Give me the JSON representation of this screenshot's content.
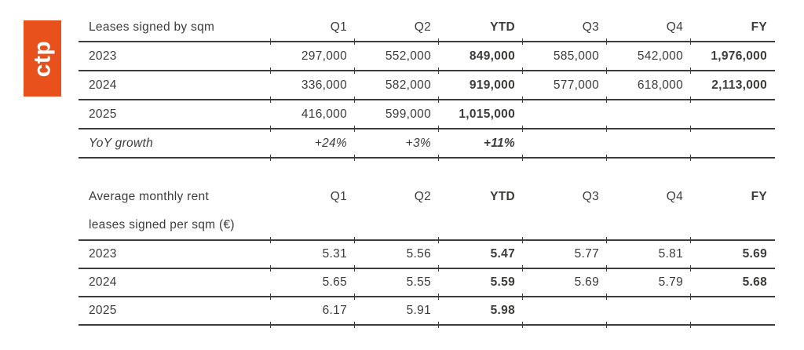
{
  "logo": {
    "text": "ctp",
    "background": "#E8511C",
    "text_color": "#FFFFFF"
  },
  "colors": {
    "text": "#3C3C3B",
    "line": "#3C3C3B",
    "background": "#FFFFFF",
    "accent": "#E8511C"
  },
  "table1": {
    "title": "Leases signed by sqm",
    "columns": [
      "Q1",
      "Q2",
      "YTD",
      "Q3",
      "Q4",
      "FY"
    ],
    "rows": [
      {
        "label": "2023",
        "values": [
          "297,000",
          "552,000",
          "849,000",
          "585,000",
          "542,000",
          "1,976,000"
        ]
      },
      {
        "label": "2024",
        "values": [
          "336,000",
          "582,000",
          "919,000",
          "577,000",
          "618,000",
          "2,113,000"
        ]
      },
      {
        "label": "2025",
        "values": [
          "416,000",
          "599,000",
          "1,015,000",
          "",
          "",
          ""
        ]
      },
      {
        "label": "YoY growth",
        "values": [
          "+24%",
          "+3%",
          "+11%",
          "",
          "",
          ""
        ]
      }
    ]
  },
  "table2": {
    "title_line1": "Average monthly rent",
    "title_line2": "leases signed per sqm (€)",
    "columns": [
      "Q1",
      "Q2",
      "YTD",
      "Q3",
      "Q4",
      "FY"
    ],
    "rows": [
      {
        "label": "2023",
        "values": [
          "5.31",
          "5.56",
          "5.47",
          "5.77",
          "5.81",
          "5.69"
        ]
      },
      {
        "label": "2024",
        "values": [
          "5.65",
          "5.55",
          "5.59",
          "5.69",
          "5.79",
          "5.68"
        ]
      },
      {
        "label": "2025",
        "values": [
          "6.17",
          "5.91",
          "5.98",
          "",
          "",
          ""
        ]
      }
    ]
  }
}
